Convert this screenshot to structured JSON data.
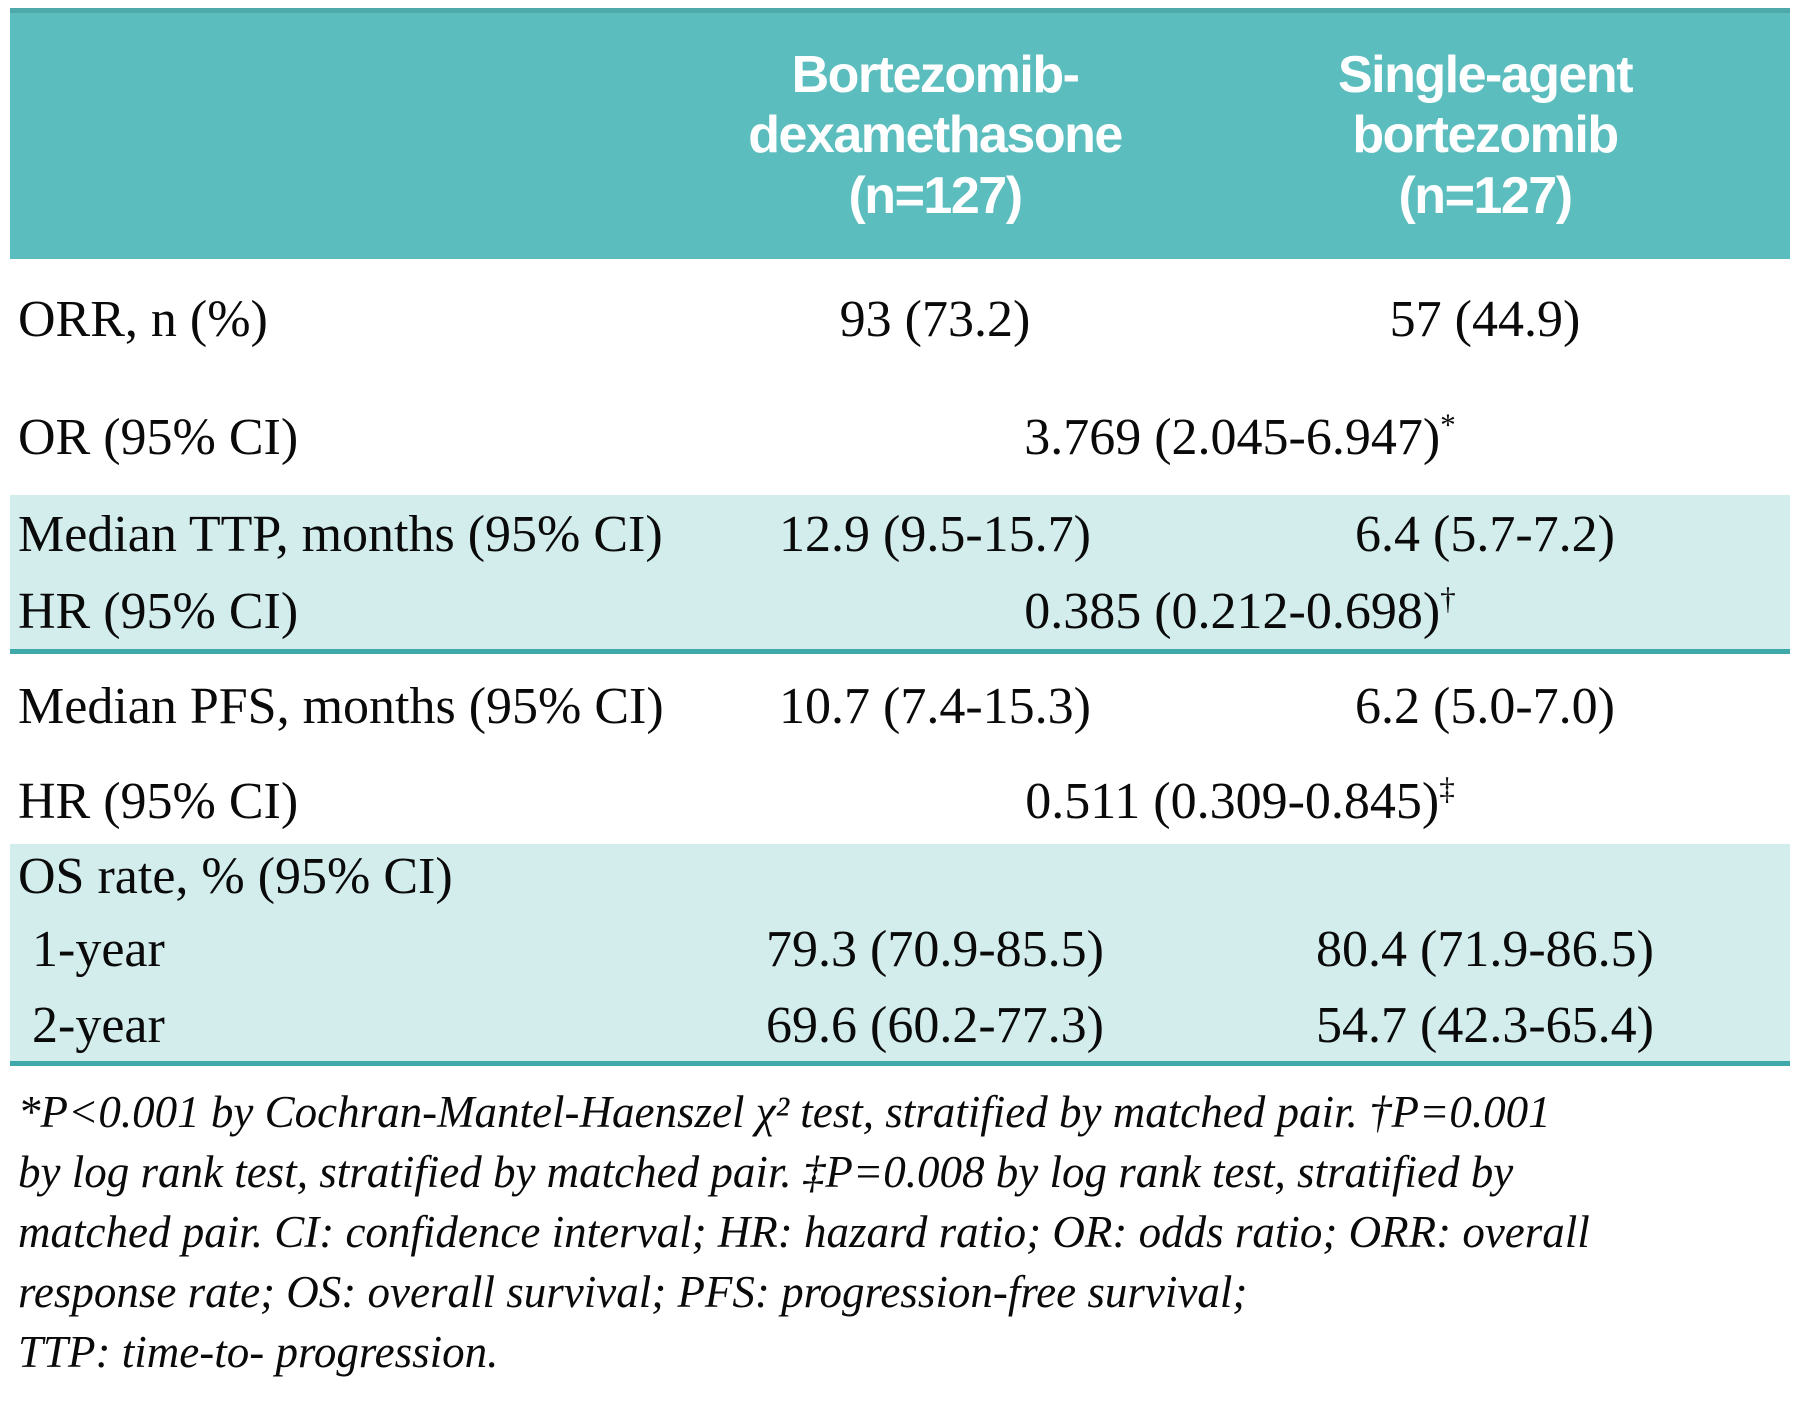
{
  "colors": {
    "header_bg": "#5cbdbe",
    "header_edge": "#4fa9ab",
    "band_bg": "#d3eded",
    "rule": "#3fa8a9",
    "header_text": "#ffffff",
    "body_text": "#0a0a0a",
    "page_bg": "#ffffff"
  },
  "table": {
    "header": {
      "col1": "Bortezomib-\ndexamethasone\n(n=127)",
      "col2": "Single-agent\nbortezomib\n(n=127)"
    },
    "rows": {
      "orr": {
        "label": "ORR, n (%)",
        "v1": "93 (73.2)",
        "v2": "57 (44.9)"
      },
      "or": {
        "label": "OR (95% CI)",
        "value": "3.769 (2.045-6.947)",
        "sup": "*"
      },
      "ttp": {
        "label": "Median TTP, months (95% CI)",
        "v1": "12.9 (9.5-15.7)",
        "v2": "6.4 (5.7-7.2)"
      },
      "ttp_hr": {
        "label": "HR (95% CI)",
        "value": "0.385 (0.212-0.698)",
        "sup": "†"
      },
      "pfs": {
        "label": "Median PFS, months (95% CI)",
        "v1": "10.7 (7.4-15.3)",
        "v2": "6.2 (5.0-7.0)"
      },
      "pfs_hr": {
        "label": "HR (95% CI)",
        "value": "0.511 (0.309-0.845)",
        "sup": "‡"
      },
      "os": {
        "label": "OS rate, % (95% CI)"
      },
      "os_1yr": {
        "label": "1-year",
        "v1": "79.3 (70.9-85.5)",
        "v2": "80.4 (71.9-86.5)"
      },
      "os_2yr": {
        "label": "2-year",
        "v1": "69.6 (60.2-77.3)",
        "v2": "54.7 (42.3-65.4)"
      }
    }
  },
  "footnote": {
    "lines": [
      "*P<0.001 by Cochran-Mantel-Haenszel χ² test, stratified by matched pair. †P=0.001",
      "by log rank test, stratified by matched pair. ‡P=0.008 by log rank test, stratified by",
      "matched pair. CI: confidence interval; HR: hazard ratio; OR: odds ratio; ORR: overall",
      "response rate; OS: overall survival;  PFS: progression-free survival;",
      "TTP: time-to- progression."
    ]
  }
}
